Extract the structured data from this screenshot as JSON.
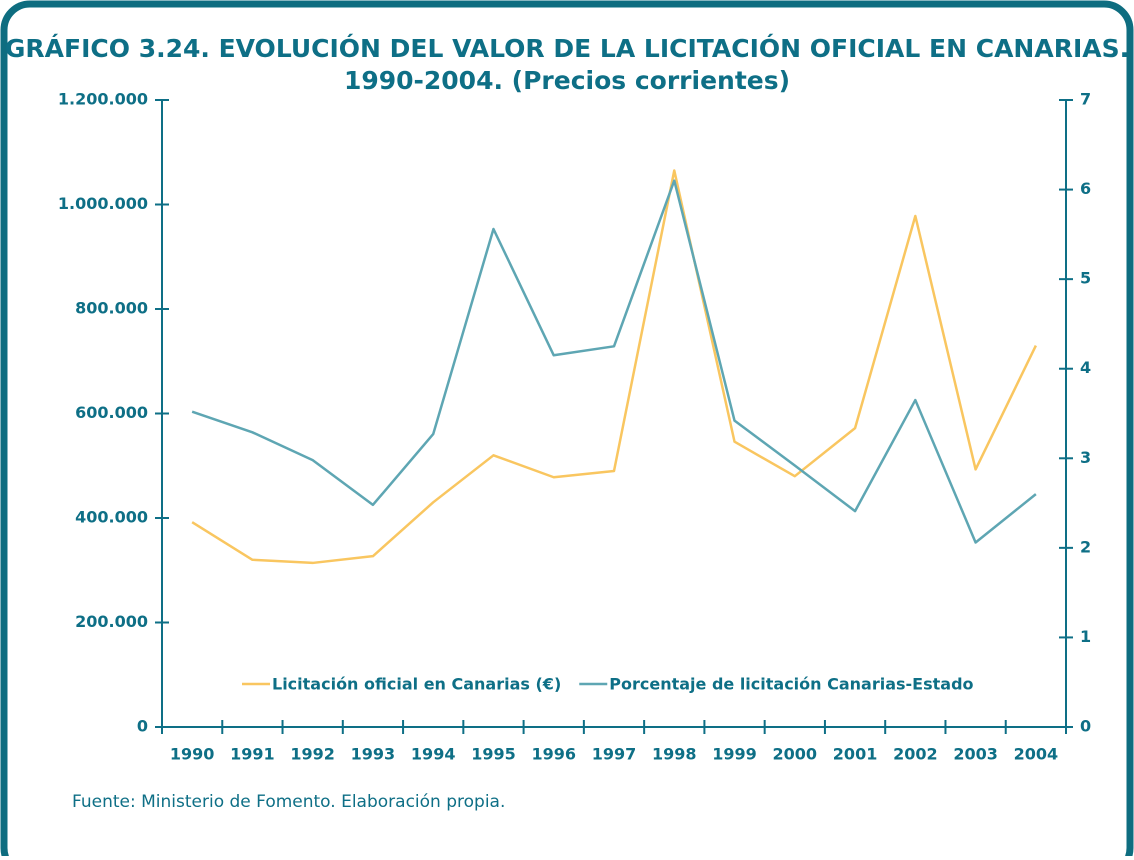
{
  "chart_data": {
    "type": "line",
    "title": "GRÁFICO 3.24. EVOLUCIÓN DEL VALOR DE LA LICITACIÓN OFICIAL EN CANARIAS.",
    "subtitle": "1990-2004. (Precios corrientes)",
    "categories": [
      "1990",
      "1991",
      "1992",
      "1993",
      "1994",
      "1995",
      "1996",
      "1997",
      "1998",
      "1999",
      "2000",
      "2001",
      "2002",
      "2003",
      "2004"
    ],
    "series": [
      {
        "name": "Licitación oficial en Canarias (€)",
        "color": "#f9c660",
        "axis": "y",
        "values": [
          392000,
          320000,
          314000,
          327000,
          430000,
          520000,
          478000,
          490000,
          1065000,
          546000,
          480000,
          572000,
          978000,
          493000,
          730000
        ]
      },
      {
        "name": "Porcentaje de licitación Canarias-Estado",
        "color": "#5ea6b3",
        "axis": "y2",
        "values": [
          3.52,
          3.29,
          2.98,
          2.48,
          3.27,
          5.56,
          4.15,
          4.25,
          6.1,
          3.42,
          2.92,
          2.41,
          3.65,
          2.06,
          2.6
        ]
      }
    ],
    "ylim": [
      0,
      1200000
    ],
    "yticks": [
      0,
      {
        "value": 200000,
        "label": "200.000"
      },
      {
        "value": 400000,
        "label": "400.000"
      },
      {
        "value": 600000,
        "label": "600.000"
      },
      {
        "value": 800000,
        "label": "800.000"
      },
      {
        "value": 1000000,
        "label": "1.000.000"
      },
      {
        "value": 1200000,
        "label": "1.200.000"
      }
    ],
    "y2lim": [
      0,
      7
    ],
    "y2ticks": [
      0,
      1,
      2,
      3,
      4,
      5,
      6,
      7
    ],
    "legend": "bottom",
    "source": "Fuente: Ministerio de Fomento. Elaboración propia."
  }
}
